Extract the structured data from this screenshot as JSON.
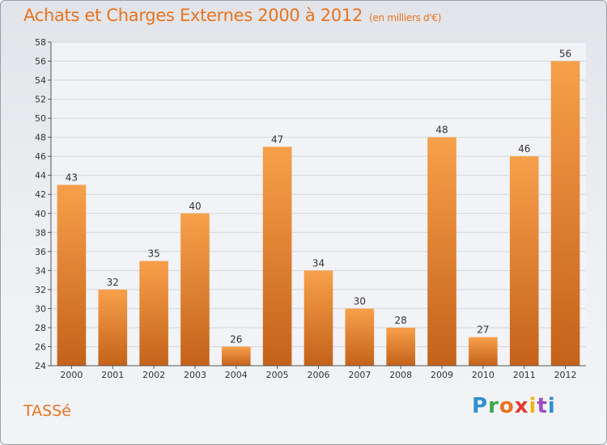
{
  "title": "Achats et Charges Externes 2000 à 2012",
  "unit": "(en milliers d'€)",
  "commune": "TASSé",
  "logo": {
    "letters": [
      "P",
      "r",
      "o",
      "x",
      "i",
      "t",
      "i"
    ],
    "colors": [
      "#2f8fd0",
      "#3aa84a",
      "#e8731e",
      "#e23a2e",
      "#f0b418",
      "#9b4fc0",
      "#2f8fd0"
    ]
  },
  "colors": {
    "bar": "#f5963d",
    "bar_dark": "#c4621a",
    "accent": "#e8731e"
  },
  "chart_data": {
    "type": "bar",
    "categories": [
      "2000",
      "2001",
      "2002",
      "2003",
      "2004",
      "2005",
      "2006",
      "2007",
      "2008",
      "2009",
      "2010",
      "2011",
      "2012"
    ],
    "values": [
      43,
      32,
      35,
      40,
      26,
      47,
      34,
      30,
      28,
      48,
      27,
      46,
      56
    ],
    "ylim": [
      24,
      58
    ],
    "yticks": [
      24,
      26,
      28,
      30,
      32,
      34,
      36,
      38,
      40,
      42,
      44,
      46,
      48,
      50,
      52,
      54,
      56,
      58
    ],
    "grid": true,
    "data_labels": true
  }
}
